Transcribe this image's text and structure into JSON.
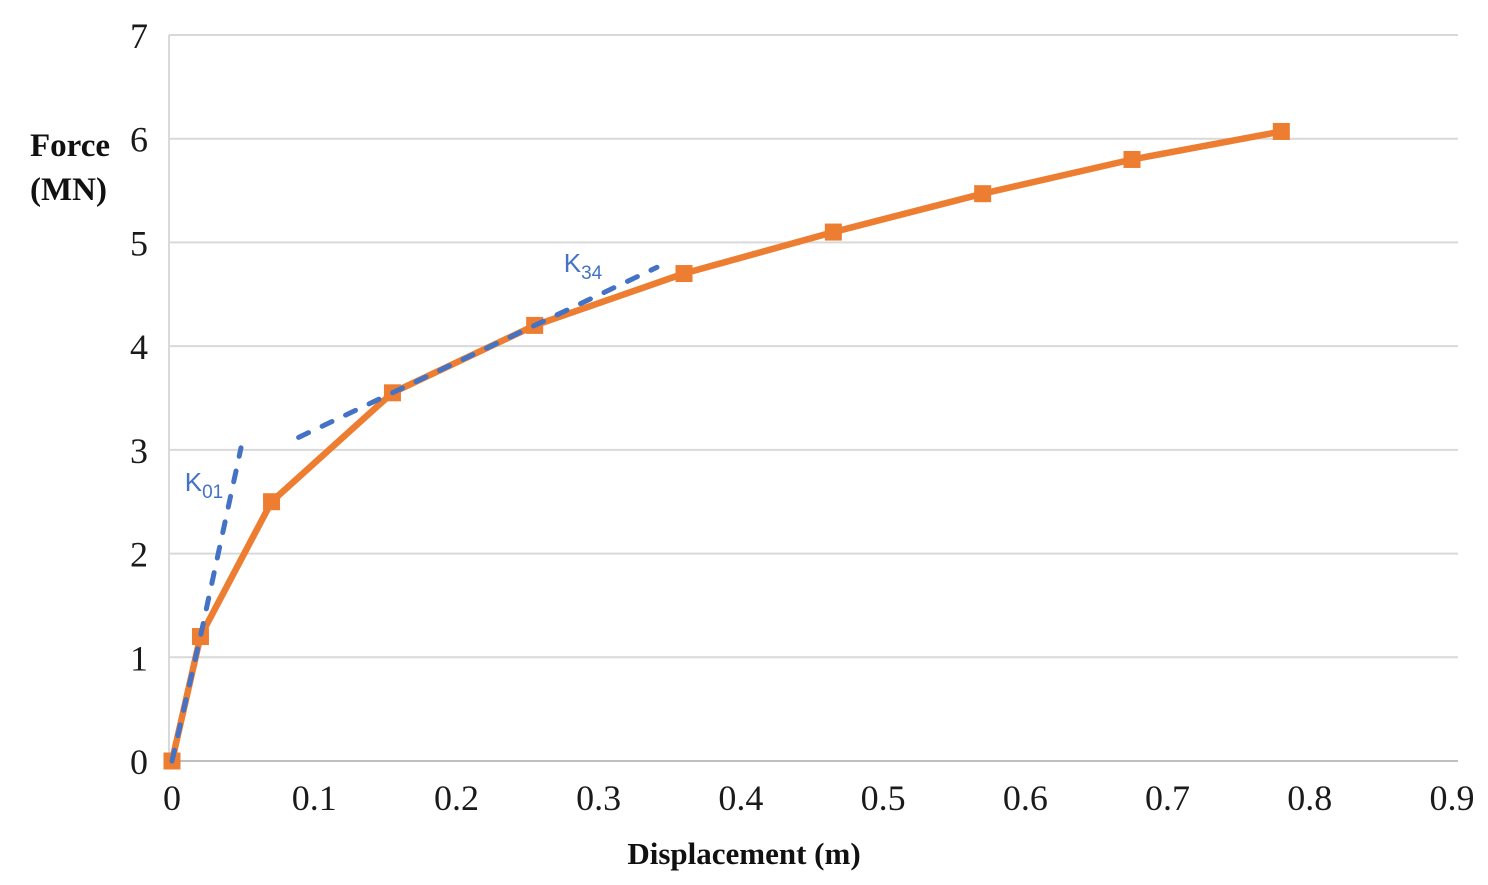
{
  "chart": {
    "ylabel_line1": "Force",
    "ylabel_line2": "(MN)",
    "xlabel": "Displacement (m)"
  },
  "chart_data": {
    "type": "line",
    "title": "",
    "xlabel": "Displacement (m)",
    "ylabel": "Force (MN)",
    "xlim": [
      0,
      0.9
    ],
    "ylim": [
      0,
      7
    ],
    "x_ticks": [
      "0",
      "0.1",
      "0.2",
      "0.3",
      "0.4",
      "0.5",
      "0.6",
      "0.7",
      "0.8",
      "0.9"
    ],
    "y_ticks": [
      "0",
      "1",
      "2",
      "3",
      "4",
      "5",
      "6",
      "7"
    ],
    "grid": "horizontal",
    "legend": "none",
    "colors": {
      "curve": "#ED7D31",
      "stiffness_line": "#4472C4",
      "gridline": "#D9D9D9",
      "axis_line": "#BFBFBF",
      "tick_text": "#1a1a1a"
    },
    "series": [
      {
        "name": "force-displacement-curve",
        "color": "#ED7D31",
        "style": "solid",
        "marker": "square",
        "points": [
          [
            0,
            0
          ],
          [
            0.02,
            1.2
          ],
          [
            0.07,
            2.5
          ],
          [
            0.155,
            3.55
          ],
          [
            0.255,
            4.2
          ],
          [
            0.36,
            4.7
          ],
          [
            0.465,
            5.1
          ],
          [
            0.57,
            5.47
          ],
          [
            0.675,
            5.8
          ],
          [
            0.78,
            6.07
          ]
        ]
      },
      {
        "name": "K01-initial-stiffness-line",
        "color": "#4472C4",
        "style": "dashed",
        "marker": "none",
        "points": [
          [
            0,
            0
          ],
          [
            0.02,
            1.2
          ],
          [
            0.0485,
            3.02
          ]
        ]
      },
      {
        "name": "K34-secant-stiffness-line",
        "color": "#4472C4",
        "style": "dashed",
        "marker": "none",
        "points": [
          [
            0.089,
            3.12
          ],
          [
            0.155,
            3.55
          ],
          [
            0.255,
            4.2
          ],
          [
            0.341,
            4.76
          ]
        ]
      }
    ],
    "annotations": [
      {
        "label": "K",
        "subscript": "01",
        "x": 0.0225,
        "y": 2.68,
        "color": "#4472C4"
      },
      {
        "label": "K",
        "subscript": "34",
        "x": 0.289,
        "y": 4.79,
        "color": "#4472C4"
      }
    ]
  }
}
